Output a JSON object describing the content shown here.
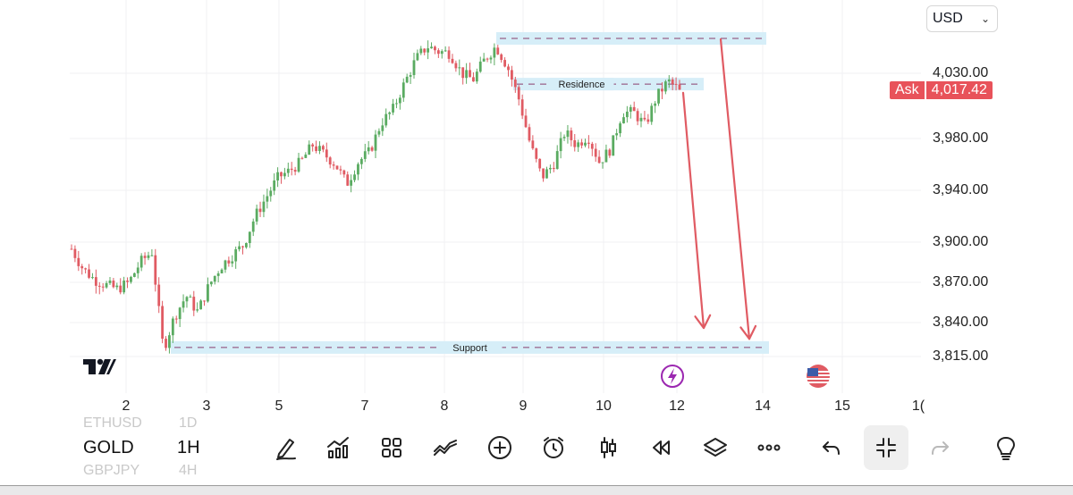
{
  "header": {
    "currency": "USD"
  },
  "price_axis": {
    "ticks": [
      "4,030.00",
      "3,980.00",
      "3,940.00",
      "3,900.00",
      "3,870.00",
      "3,840.00",
      "3,815.00"
    ],
    "ask_label": "Ask",
    "ask_value": "4,017.42"
  },
  "time_axis": {
    "ticks": [
      "2",
      "3",
      "5",
      "7",
      "8",
      "9",
      "10",
      "12",
      "14",
      "15",
      "1("
    ]
  },
  "annotations": {
    "resistance_label": "Residence",
    "support_label": "Support"
  },
  "instrument": {
    "symbol": "GOLD",
    "interval": "1H",
    "partial_above": [
      "ETHUSD",
      "1D"
    ],
    "partial_below": [
      "GBPJPY",
      "4H"
    ]
  },
  "toolbar": {
    "icons": [
      "pen-icon",
      "indicators-icon",
      "layouts-icon",
      "compare-icon",
      "add-icon",
      "alert-icon",
      "candles-icon",
      "replay-icon",
      "layers-icon",
      "more-icon",
      "undo-icon",
      "collapse-icon",
      "redo-icon",
      "lightbulb-icon"
    ]
  },
  "colors": {
    "up": "#5aab61",
    "down": "#e05b63",
    "zone_fill": "#d6eef8",
    "zone_dash": "#8a3f6d",
    "arrow": "#e05b63",
    "ask_badge": "#e8525a",
    "event_purple": "#9b27b0"
  },
  "chart_data": {
    "type": "candlestick",
    "instrument": "GOLD",
    "interval": "1H",
    "x_ticks": [
      "2",
      "3",
      "5",
      "7",
      "8",
      "9",
      "10",
      "12",
      "14",
      "15"
    ],
    "y_ticks": [
      4030,
      3980,
      3940,
      3900,
      3870,
      3840,
      3815
    ],
    "ylim": [
      3805,
      4062
    ],
    "current_price": 4017.42,
    "levels": [
      {
        "name": "Residence",
        "price": 4021
      },
      {
        "name": "Support",
        "price": 3821
      },
      {
        "name": "",
        "price": 4055
      }
    ],
    "path": [
      3895,
      3880,
      3872,
      3868,
      3865,
      3870,
      3885,
      3893,
      3820,
      3845,
      3860,
      3848,
      3868,
      3882,
      3890,
      3898,
      3920,
      3935,
      3950,
      3955,
      3962,
      3975,
      3968,
      3960,
      3945,
      3962,
      3970,
      3992,
      4002,
      4022,
      4040,
      4050,
      4046,
      4045,
      4030,
      4025,
      4040,
      4050,
      4035,
      4010,
      3975,
      3950,
      3960,
      3985,
      3975,
      3982,
      3962,
      3972,
      4000,
      4000,
      3990,
      4012,
      4024,
      4017
    ],
    "arrows": [
      {
        "from_price": 4055,
        "to_price": 3828
      },
      {
        "from_price": 4015,
        "to_price": 3836
      }
    ]
  }
}
